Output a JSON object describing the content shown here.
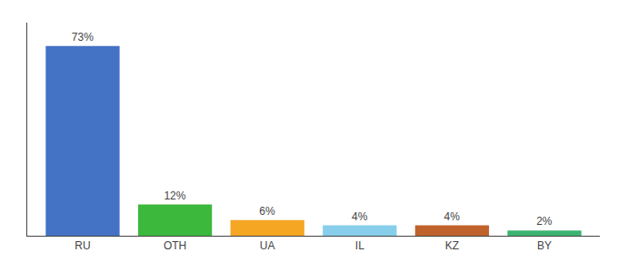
{
  "chart_data": {
    "type": "bar",
    "categories": [
      "RU",
      "OTH",
      "UA",
      "IL",
      "KZ",
      "BY"
    ],
    "values": [
      73,
      12,
      6,
      4,
      4,
      2
    ],
    "value_labels": [
      "73%",
      "12%",
      "6%",
      "4%",
      "4%",
      "2%"
    ],
    "data_labels": true,
    "colors": [
      "#4472C4",
      "#3CB83C",
      "#F5A623",
      "#87CEEB",
      "#C0622B",
      "#3CB371"
    ],
    "ylim": [
      0,
      82
    ],
    "tick_labels": "x",
    "grid": false
  }
}
